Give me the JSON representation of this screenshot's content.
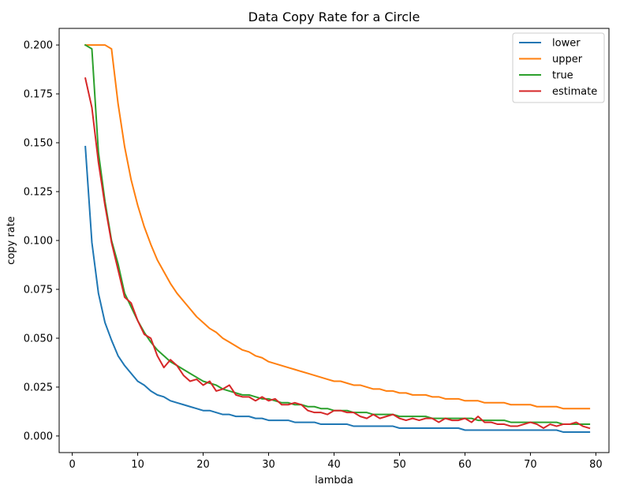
{
  "chart_data": {
    "type": "line",
    "title": "Data Copy Rate for a Circle",
    "xlabel": "lambda",
    "ylabel": "copy rate",
    "xlim": [
      -2,
      82
    ],
    "ylim": [
      -0.0085,
      0.2085
    ],
    "xticks": [
      0,
      10,
      20,
      30,
      40,
      50,
      60,
      70,
      80
    ],
    "yticks": [
      0.0,
      0.025,
      0.05,
      0.075,
      0.1,
      0.125,
      0.15,
      0.175,
      0.2
    ],
    "xtick_labels": [
      "0",
      "10",
      "20",
      "30",
      "40",
      "50",
      "60",
      "70",
      "80"
    ],
    "ytick_labels": [
      "0.000",
      "0.025",
      "0.050",
      "0.075",
      "0.100",
      "0.125",
      "0.150",
      "0.175",
      "0.200"
    ],
    "grid": false,
    "legend_position": "top-right",
    "series": [
      {
        "name": "lower",
        "color": "#1f77b4",
        "x": [
          2,
          3,
          4,
          5,
          6,
          7,
          8,
          9,
          10,
          11,
          12,
          13,
          14,
          15,
          16,
          17,
          18,
          19,
          20,
          21,
          22,
          23,
          24,
          25,
          26,
          27,
          28,
          29,
          30,
          31,
          32,
          33,
          34,
          35,
          36,
          37,
          38,
          39,
          40,
          41,
          42,
          43,
          44,
          45,
          46,
          47,
          48,
          49,
          50,
          51,
          52,
          53,
          54,
          55,
          56,
          57,
          58,
          59,
          60,
          61,
          62,
          63,
          64,
          65,
          66,
          67,
          68,
          69,
          70,
          71,
          72,
          73,
          74,
          75,
          76,
          77,
          78,
          79
        ],
        "values": [
          0.148,
          0.099,
          0.073,
          0.058,
          0.049,
          0.041,
          0.036,
          0.032,
          0.028,
          0.026,
          0.023,
          0.021,
          0.02,
          0.018,
          0.017,
          0.016,
          0.015,
          0.014,
          0.013,
          0.013,
          0.012,
          0.011,
          0.011,
          0.01,
          0.01,
          0.01,
          0.009,
          0.009,
          0.008,
          0.008,
          0.008,
          0.008,
          0.007,
          0.007,
          0.007,
          0.007,
          0.006,
          0.006,
          0.006,
          0.006,
          0.006,
          0.005,
          0.005,
          0.005,
          0.005,
          0.005,
          0.005,
          0.005,
          0.004,
          0.004,
          0.004,
          0.004,
          0.004,
          0.004,
          0.004,
          0.004,
          0.004,
          0.004,
          0.003,
          0.003,
          0.003,
          0.003,
          0.003,
          0.003,
          0.003,
          0.003,
          0.003,
          0.003,
          0.003,
          0.003,
          0.003,
          0.003,
          0.003,
          0.002,
          0.002,
          0.002,
          0.002,
          0.002
        ]
      },
      {
        "name": "upper",
        "color": "#ff7f0e",
        "x": [
          2,
          3,
          4,
          5,
          6,
          7,
          8,
          9,
          10,
          11,
          12,
          13,
          14,
          15,
          16,
          17,
          18,
          19,
          20,
          21,
          22,
          23,
          24,
          25,
          26,
          27,
          28,
          29,
          30,
          31,
          32,
          33,
          34,
          35,
          36,
          37,
          38,
          39,
          40,
          41,
          42,
          43,
          44,
          45,
          46,
          47,
          48,
          49,
          50,
          51,
          52,
          53,
          54,
          55,
          56,
          57,
          58,
          59,
          60,
          61,
          62,
          63,
          64,
          65,
          66,
          67,
          68,
          69,
          70,
          71,
          72,
          73,
          74,
          75,
          76,
          77,
          78,
          79
        ],
        "values": [
          0.2,
          0.2,
          0.2,
          0.2,
          0.198,
          0.17,
          0.148,
          0.131,
          0.118,
          0.107,
          0.098,
          0.09,
          0.084,
          0.078,
          0.073,
          0.069,
          0.065,
          0.061,
          0.058,
          0.055,
          0.053,
          0.05,
          0.048,
          0.046,
          0.044,
          0.043,
          0.041,
          0.04,
          0.038,
          0.037,
          0.036,
          0.035,
          0.034,
          0.033,
          0.032,
          0.031,
          0.03,
          0.029,
          0.028,
          0.028,
          0.027,
          0.026,
          0.026,
          0.025,
          0.024,
          0.024,
          0.023,
          0.023,
          0.022,
          0.022,
          0.021,
          0.021,
          0.021,
          0.02,
          0.02,
          0.019,
          0.019,
          0.019,
          0.018,
          0.018,
          0.018,
          0.017,
          0.017,
          0.017,
          0.017,
          0.016,
          0.016,
          0.016,
          0.016,
          0.015,
          0.015,
          0.015,
          0.015,
          0.014,
          0.014,
          0.014,
          0.014,
          0.014
        ]
      },
      {
        "name": "true",
        "color": "#2ca02c",
        "x": [
          2,
          3,
          4,
          5,
          6,
          7,
          8,
          9,
          10,
          11,
          12,
          13,
          14,
          15,
          16,
          17,
          18,
          19,
          20,
          21,
          22,
          23,
          24,
          25,
          26,
          27,
          28,
          29,
          30,
          31,
          32,
          33,
          34,
          35,
          36,
          37,
          38,
          39,
          40,
          41,
          42,
          43,
          44,
          45,
          46,
          47,
          48,
          49,
          50,
          51,
          52,
          53,
          54,
          55,
          56,
          57,
          58,
          59,
          60,
          61,
          62,
          63,
          64,
          65,
          66,
          67,
          68,
          69,
          70,
          71,
          72,
          73,
          74,
          75,
          76,
          77,
          78,
          79
        ],
        "values": [
          0.2,
          0.198,
          0.145,
          0.12,
          0.1,
          0.088,
          0.073,
          0.066,
          0.059,
          0.053,
          0.048,
          0.044,
          0.041,
          0.038,
          0.036,
          0.034,
          0.032,
          0.03,
          0.028,
          0.027,
          0.026,
          0.024,
          0.023,
          0.022,
          0.021,
          0.021,
          0.02,
          0.019,
          0.019,
          0.018,
          0.017,
          0.017,
          0.016,
          0.016,
          0.015,
          0.015,
          0.014,
          0.014,
          0.013,
          0.013,
          0.013,
          0.012,
          0.012,
          0.012,
          0.011,
          0.011,
          0.011,
          0.011,
          0.01,
          0.01,
          0.01,
          0.01,
          0.01,
          0.009,
          0.009,
          0.009,
          0.009,
          0.009,
          0.009,
          0.009,
          0.008,
          0.008,
          0.008,
          0.008,
          0.008,
          0.007,
          0.007,
          0.007,
          0.007,
          0.007,
          0.007,
          0.007,
          0.007,
          0.006,
          0.006,
          0.006,
          0.006,
          0.006
        ]
      },
      {
        "name": "estimate",
        "color": "#d62728",
        "x": [
          2,
          3,
          4,
          5,
          6,
          7,
          8,
          9,
          10,
          11,
          12,
          13,
          14,
          15,
          16,
          17,
          18,
          19,
          20,
          21,
          22,
          23,
          24,
          25,
          26,
          27,
          28,
          29,
          30,
          31,
          32,
          33,
          34,
          35,
          36,
          37,
          38,
          39,
          40,
          41,
          42,
          43,
          44,
          45,
          46,
          47,
          48,
          49,
          50,
          51,
          52,
          53,
          54,
          55,
          56,
          57,
          58,
          59,
          60,
          61,
          62,
          63,
          64,
          65,
          66,
          67,
          68,
          69,
          70,
          71,
          72,
          73,
          74,
          75,
          76,
          77,
          78,
          79
        ],
        "values": [
          0.183,
          0.168,
          0.14,
          0.118,
          0.099,
          0.085,
          0.071,
          0.068,
          0.059,
          0.052,
          0.05,
          0.041,
          0.035,
          0.039,
          0.036,
          0.031,
          0.028,
          0.029,
          0.026,
          0.028,
          0.023,
          0.024,
          0.026,
          0.021,
          0.02,
          0.02,
          0.018,
          0.02,
          0.018,
          0.019,
          0.016,
          0.016,
          0.017,
          0.016,
          0.013,
          0.012,
          0.012,
          0.011,
          0.013,
          0.013,
          0.012,
          0.012,
          0.01,
          0.009,
          0.011,
          0.009,
          0.01,
          0.011,
          0.009,
          0.008,
          0.009,
          0.008,
          0.009,
          0.009,
          0.007,
          0.009,
          0.008,
          0.008,
          0.009,
          0.007,
          0.01,
          0.007,
          0.007,
          0.006,
          0.006,
          0.005,
          0.005,
          0.006,
          0.007,
          0.006,
          0.004,
          0.006,
          0.005,
          0.006,
          0.006,
          0.007,
          0.005,
          0.004
        ]
      }
    ]
  }
}
